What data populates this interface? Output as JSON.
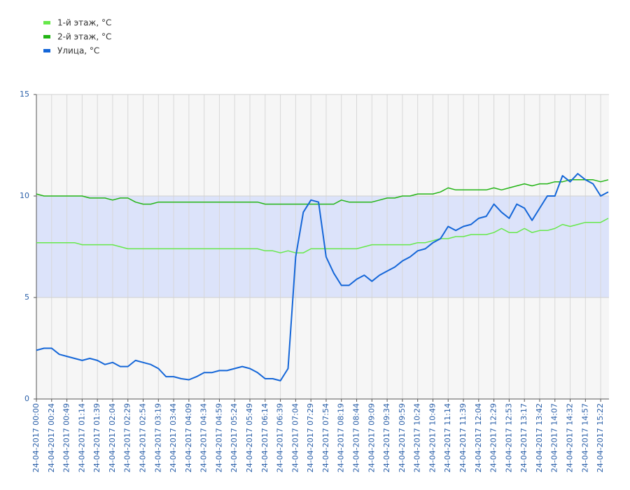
{
  "chart_data": {
    "type": "line",
    "categories": [
      "24-04-2017 00:00",
      null,
      "24-04-2017 00:24",
      null,
      "24-04-2017 00:49",
      null,
      "24-04-2017 01:14",
      null,
      "24-04-2017 01:39",
      null,
      "24-04-2017 02:04",
      null,
      "24-04-2017 02:29",
      null,
      "24-04-2017 02:54",
      null,
      "24-04-2017 03:19",
      null,
      "24-04-2017 03:44",
      null,
      "24-04-2017 04:09",
      null,
      "24-04-2017 04:34",
      null,
      "24-04-2017 04:59",
      null,
      "24-04-2017 05:24",
      null,
      "24-04-2017 05:49",
      null,
      "24-04-2017 06:14",
      null,
      "24-04-2017 06:39",
      null,
      "24-04-2017 07:04",
      null,
      "24-04-2017 07:29",
      null,
      "24-04-2017 07:54",
      null,
      "24-04-2017 08:19",
      null,
      "24-04-2017 08:44",
      null,
      "24-04-2017 09:09",
      null,
      "24-04-2017 09:34",
      null,
      "24-04-2017 09:59",
      null,
      "24-04-2017 10:24",
      null,
      "24-04-2017 10:49",
      null,
      "24-04-2017 11:14",
      null,
      "24-04-2017 11:39",
      null,
      "24-04-2017 12:04",
      null,
      "24-04-2017 12:29",
      null,
      "24-04-2017 12:53",
      null,
      "24-04-2017 13:17",
      null,
      "24-04-2017 13:42",
      null,
      "24-04-2017 14:07",
      null,
      "24-04-2017 14:32",
      null,
      "24-04-2017 14:57",
      null,
      "24-04-2017 15:22",
      null
    ],
    "series": [
      {
        "name": "1-й этаж, °C",
        "color": "#66e84a",
        "values": [
          7.7,
          7.7,
          7.7,
          7.7,
          7.7,
          7.7,
          7.6,
          7.6,
          7.6,
          7.6,
          7.6,
          7.5,
          7.4,
          7.4,
          7.4,
          7.4,
          7.4,
          7.4,
          7.4,
          7.4,
          7.4,
          7.4,
          7.4,
          7.4,
          7.4,
          7.4,
          7.4,
          7.4,
          7.4,
          7.4,
          7.3,
          7.3,
          7.2,
          7.3,
          7.2,
          7.2,
          7.4,
          7.4,
          7.4,
          7.4,
          7.4,
          7.4,
          7.4,
          7.5,
          7.6,
          7.6,
          7.6,
          7.6,
          7.6,
          7.6,
          7.7,
          7.7,
          7.8,
          7.9,
          7.9,
          8.0,
          8.0,
          8.1,
          8.1,
          8.1,
          8.2,
          8.4,
          8.2,
          8.2,
          8.4,
          8.2,
          8.3,
          8.3,
          8.4,
          8.6,
          8.5,
          8.6,
          8.7,
          8.7,
          8.7,
          8.9
        ]
      },
      {
        "name": "2-й этаж, °C",
        "color": "#22b414",
        "values": [
          10.1,
          10.0,
          10.0,
          10.0,
          10.0,
          10.0,
          10.0,
          9.9,
          9.9,
          9.9,
          9.8,
          9.9,
          9.9,
          9.7,
          9.6,
          9.6,
          9.7,
          9.7,
          9.7,
          9.7,
          9.7,
          9.7,
          9.7,
          9.7,
          9.7,
          9.7,
          9.7,
          9.7,
          9.7,
          9.7,
          9.6,
          9.6,
          9.6,
          9.6,
          9.6,
          9.6,
          9.6,
          9.6,
          9.6,
          9.6,
          9.8,
          9.7,
          9.7,
          9.7,
          9.7,
          9.8,
          9.9,
          9.9,
          10.0,
          10.0,
          10.1,
          10.1,
          10.1,
          10.2,
          10.4,
          10.3,
          10.3,
          10.3,
          10.3,
          10.3,
          10.4,
          10.3,
          10.4,
          10.5,
          10.6,
          10.5,
          10.6,
          10.6,
          10.7,
          10.7,
          10.8,
          10.8,
          10.8,
          10.8,
          10.7,
          10.8
        ]
      },
      {
        "name": "Улица, °C",
        "color": "#1466d8",
        "values": [
          2.4,
          2.5,
          2.5,
          2.2,
          2.1,
          2.0,
          1.9,
          2.0,
          1.9,
          1.7,
          1.8,
          1.6,
          1.6,
          1.9,
          1.8,
          1.7,
          1.5,
          1.1,
          1.1,
          1.0,
          0.95,
          1.1,
          1.3,
          1.3,
          1.4,
          1.4,
          1.5,
          1.6,
          1.5,
          1.3,
          1.0,
          1.0,
          0.9,
          1.5,
          7.0,
          9.2,
          9.8,
          9.7,
          7.0,
          6.2,
          5.6,
          5.6,
          5.9,
          6.1,
          5.8,
          6.1,
          6.3,
          6.5,
          6.8,
          7.0,
          7.3,
          7.4,
          7.7,
          7.9,
          8.5,
          8.3,
          8.5,
          8.6,
          8.9,
          9.0,
          9.6,
          9.2,
          8.9,
          9.6,
          9.4,
          8.8,
          9.4,
          10.0,
          10.0,
          11.0,
          10.7,
          11.1,
          10.8,
          10.6,
          10.0,
          10.2
        ]
      }
    ],
    "band": [
      5,
      10
    ],
    "band_color": "#dce3fa",
    "ylim": [
      0,
      15
    ],
    "yticks": [
      0,
      5,
      10,
      15
    ],
    "grid": true
  }
}
